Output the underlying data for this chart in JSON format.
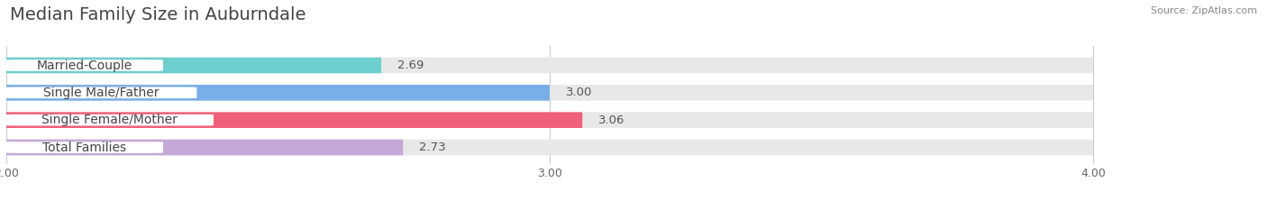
{
  "title": "Median Family Size in Auburndale",
  "source": "Source: ZipAtlas.com",
  "categories": [
    "Married-Couple",
    "Single Male/Father",
    "Single Female/Mother",
    "Total Families"
  ],
  "values": [
    2.69,
    3.0,
    3.06,
    2.73
  ],
  "bar_colors": [
    "#6ecfcf",
    "#7aaee8",
    "#f0607a",
    "#c4a8d8"
  ],
  "bar_bg_color": "#e8e8e8",
  "xmin": 2.0,
  "xmax": 4.0,
  "xticks": [
    2.0,
    3.0,
    4.0
  ],
  "xtick_labels": [
    "2.00",
    "3.00",
    "4.00"
  ],
  "background_color": "#ffffff",
  "bar_height": 0.58,
  "title_fontsize": 14,
  "label_fontsize": 10,
  "value_fontsize": 9.5,
  "tick_fontsize": 9,
  "source_fontsize": 8
}
